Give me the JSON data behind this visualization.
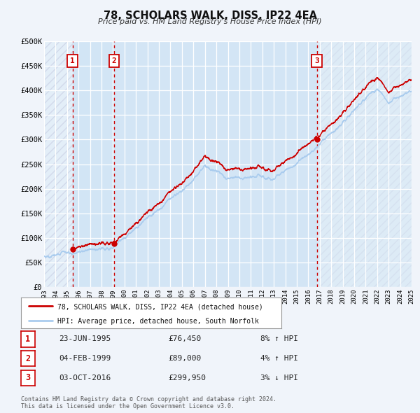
{
  "title": "78, SCHOLARS WALK, DISS, IP22 4EA",
  "subtitle": "Price paid vs. HM Land Registry's House Price Index (HPI)",
  "background_color": "#f0f4fa",
  "plot_bg_color": "#d8e8f5",
  "grid_color": "#ffffff",
  "xlim": [
    1993,
    2025
  ],
  "ylim": [
    0,
    500000
  ],
  "yticks": [
    0,
    50000,
    100000,
    150000,
    200000,
    250000,
    300000,
    350000,
    400000,
    450000,
    500000
  ],
  "ytick_labels": [
    "£0",
    "£50K",
    "£100K",
    "£150K",
    "£200K",
    "£250K",
    "£300K",
    "£350K",
    "£400K",
    "£450K",
    "£500K"
  ],
  "xticks": [
    1993,
    1994,
    1995,
    1996,
    1997,
    1998,
    1999,
    2000,
    2001,
    2002,
    2003,
    2004,
    2005,
    2006,
    2007,
    2008,
    2009,
    2010,
    2011,
    2012,
    2013,
    2014,
    2015,
    2016,
    2017,
    2018,
    2019,
    2020,
    2021,
    2022,
    2023,
    2024,
    2025
  ],
  "sale_color": "#cc0000",
  "hpi_color": "#aaccee",
  "sale_dot_color": "#cc0000",
  "marker1_year": 1995.47,
  "marker1_value": 76450,
  "marker2_year": 1999.09,
  "marker2_value": 89000,
  "marker3_year": 2016.75,
  "marker3_value": 299950,
  "vline_color": "#cc0000",
  "legend_sale_label": "78, SCHOLARS WALK, DISS, IP22 4EA (detached house)",
  "legend_hpi_label": "HPI: Average price, detached house, South Norfolk",
  "table_rows": [
    {
      "num": "1",
      "date": "23-JUN-1995",
      "price": "£76,450",
      "pct": "8% ↑ HPI"
    },
    {
      "num": "2",
      "date": "04-FEB-1999",
      "price": "£89,000",
      "pct": "4% ↑ HPI"
    },
    {
      "num": "3",
      "date": "03-OCT-2016",
      "price": "£299,950",
      "pct": "3% ↓ HPI"
    }
  ],
  "footer1": "Contains HM Land Registry data © Crown copyright and database right 2024.",
  "footer2": "This data is licensed under the Open Government Licence v3.0."
}
